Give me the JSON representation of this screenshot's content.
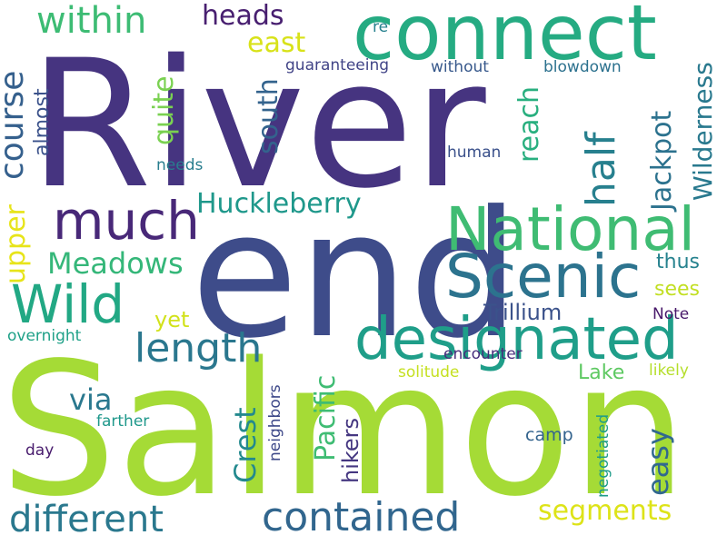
{
  "words": [
    {
      "text": "River",
      "color": "#463480"
    },
    {
      "text": "end",
      "color": "#3e4c8a"
    },
    {
      "text": "Salmon",
      "color": "#a5db36"
    },
    {
      "text": "connect",
      "color": "#25ab82"
    },
    {
      "text": "National",
      "color": "#3fbc73"
    },
    {
      "text": "Scenic",
      "color": "#2c738e"
    },
    {
      "text": "designated",
      "color": "#1f9e89"
    },
    {
      "text": "Wild",
      "color": "#22a884"
    },
    {
      "text": "much",
      "color": "#482878"
    },
    {
      "text": "length",
      "color": "#2a778e"
    },
    {
      "text": "contained",
      "color": "#31668e"
    },
    {
      "text": "different",
      "color": "#2a788e"
    },
    {
      "text": "course",
      "color": "#35608d"
    },
    {
      "text": "within",
      "color": "#3dbc74"
    },
    {
      "text": "heads",
      "color": "#481f70"
    },
    {
      "text": "east",
      "color": "#d8e219"
    },
    {
      "text": "quite",
      "color": "#7ad151"
    },
    {
      "text": "south",
      "color": "#33638d"
    },
    {
      "text": "half",
      "color": "#27808e"
    },
    {
      "text": "reach",
      "color": "#29af7f"
    },
    {
      "text": "Jackpot",
      "color": "#2c728e"
    },
    {
      "text": "Wilderness",
      "color": "#29798e"
    },
    {
      "text": "upper",
      "color": "#e7e419"
    },
    {
      "text": "almost",
      "color": "#3b528b"
    },
    {
      "text": "Huckleberry",
      "color": "#1f988b"
    },
    {
      "text": "Meadows",
      "color": "#35b779"
    },
    {
      "text": "Pacific",
      "color": "#3fbc73"
    },
    {
      "text": "Crest",
      "color": "#23898e"
    },
    {
      "text": "Trillium",
      "color": "#3b528b"
    },
    {
      "text": "yet",
      "color": "#d2e21b"
    },
    {
      "text": "via",
      "color": "#2a788e"
    },
    {
      "text": "hikers",
      "color": "#453781"
    },
    {
      "text": "easy",
      "color": "#31688e"
    },
    {
      "text": "segments",
      "color": "#dde318"
    },
    {
      "text": "Lake",
      "color": "#5ec962"
    },
    {
      "text": "thus",
      "color": "#26828e"
    },
    {
      "text": "sees",
      "color": "#c2df23"
    },
    {
      "text": "Note",
      "color": "#48186a"
    },
    {
      "text": "guaranteeing",
      "color": "#414487"
    },
    {
      "text": "without",
      "color": "#38598c"
    },
    {
      "text": "blowdown",
      "color": "#2c718e"
    },
    {
      "text": "re",
      "color": "#26818e"
    },
    {
      "text": "human",
      "color": "#3b518b"
    },
    {
      "text": "needs",
      "color": "#287d8e"
    },
    {
      "text": "overnight",
      "color": "#1fa188"
    },
    {
      "text": "solitude",
      "color": "#c5e021"
    },
    {
      "text": "likely",
      "color": "#b5de2b"
    },
    {
      "text": "encounter",
      "color": "#472d7b"
    },
    {
      "text": "neighbors",
      "color": "#3e4989"
    },
    {
      "text": "negotiated",
      "color": "#1e9c89"
    },
    {
      "text": "farther",
      "color": "#1f988b"
    },
    {
      "text": "camp",
      "color": "#33638d"
    },
    {
      "text": "day",
      "color": "#481b6d"
    }
  ]
}
